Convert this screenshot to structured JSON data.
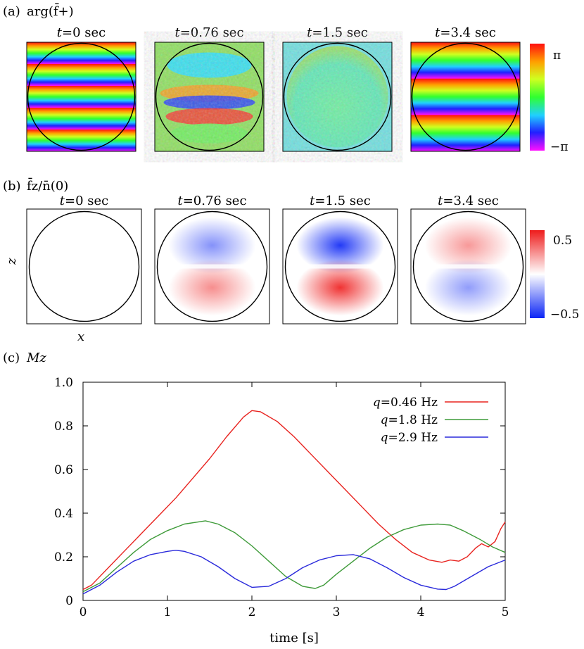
{
  "panel_a": {
    "label": "(a)",
    "quantity": "arg(f̄+)",
    "colorbar_ticks": [
      "π",
      "−π"
    ],
    "frames": [
      {
        "t": "t",
        "eq": "=0 sec",
        "pattern": "stripes",
        "stripes": 5
      },
      {
        "t": "t",
        "eq": "=0.76 sec",
        "pattern": "mixed"
      },
      {
        "t": "t",
        "eq": "=1.5 sec",
        "pattern": "uniform"
      },
      {
        "t": "t",
        "eq": "=3.4 sec",
        "pattern": "stripes",
        "stripes": 3
      }
    ]
  },
  "panel_b": {
    "label": "(b)",
    "quantity": "f̄z/n̄(0)",
    "colorbar_ticks": [
      "0.5",
      "−0.5"
    ],
    "axis_x": "x",
    "axis_z": "z",
    "frames": [
      {
        "t": "t",
        "eq": "=0 sec",
        "top": "none",
        "bottom": "none",
        "strength": 0
      },
      {
        "t": "t",
        "eq": "=0.76 sec",
        "top": "blue",
        "bottom": "red",
        "strength": 0.5
      },
      {
        "t": "t",
        "eq": "=1.5 sec",
        "top": "blue",
        "bottom": "red",
        "strength": 0.9
      },
      {
        "t": "t",
        "eq": "=3.4 sec",
        "top": "red",
        "bottom": "blue",
        "strength": 0.45
      }
    ]
  },
  "panel_c": {
    "label": "(c)",
    "quantity": "Mz"
  },
  "chart_data": {
    "type": "line",
    "title": "(c) Mz",
    "xlabel": "time [s]",
    "ylabel": "",
    "xlim": [
      0,
      5
    ],
    "ylim": [
      0,
      1.0
    ],
    "xticks": [
      "0",
      "1",
      "2",
      "3",
      "4",
      "5"
    ],
    "yticks": [
      "0",
      "0.2",
      "0.4",
      "0.6",
      "0.8",
      "1.0"
    ],
    "legend_position": "top-right",
    "series": [
      {
        "name": "q=0.46 Hz",
        "q": "q",
        "eq": "=0.46 Hz",
        "color": "#e8231f",
        "x": [
          0,
          0.1,
          0.3,
          0.5,
          0.7,
          0.9,
          1.1,
          1.3,
          1.5,
          1.7,
          1.9,
          2.0,
          2.1,
          2.3,
          2.5,
          2.7,
          2.9,
          3.1,
          3.3,
          3.5,
          3.7,
          3.9,
          4.1,
          4.25,
          4.35,
          4.45,
          4.55,
          4.65,
          4.72,
          4.8,
          4.88,
          4.95,
          5.0
        ],
        "y": [
          0.05,
          0.07,
          0.15,
          0.23,
          0.31,
          0.39,
          0.47,
          0.56,
          0.65,
          0.75,
          0.84,
          0.87,
          0.865,
          0.82,
          0.75,
          0.67,
          0.59,
          0.51,
          0.43,
          0.35,
          0.28,
          0.22,
          0.185,
          0.175,
          0.185,
          0.18,
          0.2,
          0.24,
          0.26,
          0.245,
          0.27,
          0.33,
          0.36
        ]
      },
      {
        "name": "q=1.8 Hz",
        "q": "q",
        "eq": "=1.8 Hz",
        "color": "#3f9b3a",
        "x": [
          0,
          0.2,
          0.4,
          0.6,
          0.8,
          1.0,
          1.2,
          1.45,
          1.6,
          1.8,
          2.0,
          2.2,
          2.4,
          2.6,
          2.75,
          2.85,
          3.0,
          3.2,
          3.4,
          3.6,
          3.8,
          4.0,
          4.2,
          4.35,
          4.5,
          4.7,
          4.85,
          5.0
        ],
        "y": [
          0.04,
          0.08,
          0.15,
          0.22,
          0.28,
          0.32,
          0.35,
          0.365,
          0.35,
          0.31,
          0.25,
          0.18,
          0.11,
          0.065,
          0.055,
          0.07,
          0.12,
          0.18,
          0.24,
          0.29,
          0.325,
          0.345,
          0.35,
          0.345,
          0.32,
          0.28,
          0.245,
          0.22
        ]
      },
      {
        "name": "q=2.9 Hz",
        "q": "q",
        "eq": "=2.9 Hz",
        "color": "#2a2adb",
        "x": [
          0,
          0.2,
          0.4,
          0.6,
          0.8,
          1.0,
          1.1,
          1.2,
          1.4,
          1.6,
          1.8,
          2.0,
          2.2,
          2.4,
          2.6,
          2.8,
          3.0,
          3.2,
          3.4,
          3.6,
          3.8,
          4.0,
          4.2,
          4.3,
          4.4,
          4.6,
          4.8,
          5.0
        ],
        "y": [
          0.03,
          0.07,
          0.13,
          0.18,
          0.21,
          0.225,
          0.23,
          0.225,
          0.2,
          0.155,
          0.1,
          0.06,
          0.065,
          0.1,
          0.15,
          0.185,
          0.205,
          0.21,
          0.19,
          0.15,
          0.105,
          0.07,
          0.052,
          0.05,
          0.065,
          0.11,
          0.155,
          0.185
        ]
      }
    ]
  }
}
